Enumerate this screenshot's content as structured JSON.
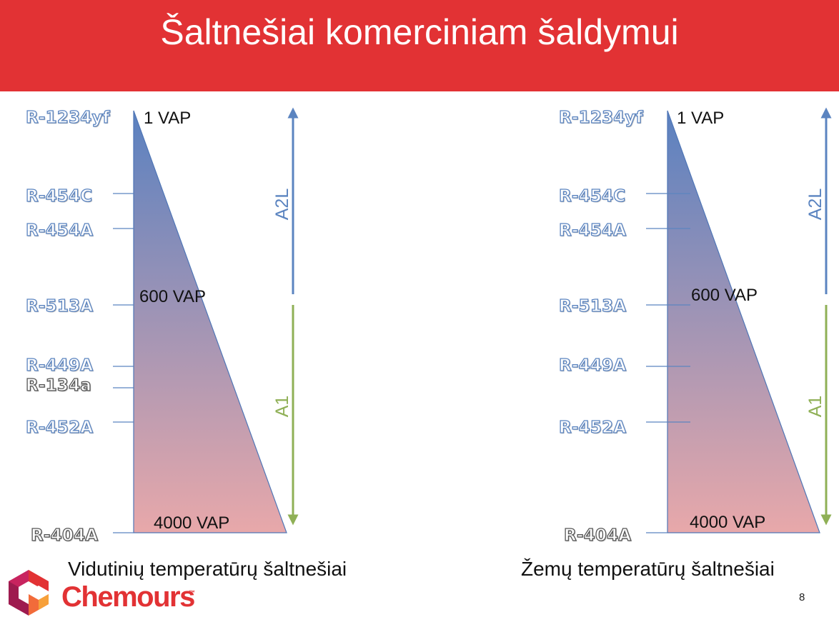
{
  "title": "Šaltnešiai komerciniam šaldymui",
  "colors": {
    "header": "#e23234",
    "refrigerant_blue": "#5b84c0",
    "refrigerant_gray": "#555555",
    "a2l_arrow": "#5b84c0",
    "a1_arrow": "#8fb056",
    "triangle_top": "#5a81c0",
    "triangle_bottom": "#e8a8aa",
    "brand": "#e23234"
  },
  "left_panel": {
    "caption": "Vidutinių temperatūrų šaltnešiai",
    "refrigerants": [
      {
        "name": "R-1234yf",
        "style": "blue"
      },
      {
        "name": "R-454C",
        "style": "blue"
      },
      {
        "name": "R-454A",
        "style": "blue"
      },
      {
        "name": "R-513A",
        "style": "blue"
      },
      {
        "name": "R-449A",
        "style": "blue"
      },
      {
        "name": "R-134a",
        "style": "gray"
      },
      {
        "name": "R-452A",
        "style": "blue"
      },
      {
        "name": "R-404A",
        "style": "gray"
      }
    ],
    "vap_top": "1 VAP",
    "vap_mid": "600 VAP",
    "vap_bottom": "4000 VAP",
    "class_upper": "A2L",
    "class_lower": "A1"
  },
  "right_panel": {
    "caption": "Žemų temperatūrų šaltnešiai",
    "refrigerants": [
      {
        "name": "R-1234yf",
        "style": "blue"
      },
      {
        "name": "R-454C",
        "style": "blue"
      },
      {
        "name": "R-454A",
        "style": "blue"
      },
      {
        "name": "R-513A",
        "style": "blue"
      },
      {
        "name": "R-449A",
        "style": "blue"
      },
      {
        "name": "R-452A",
        "style": "blue"
      },
      {
        "name": "R-404A",
        "style": "gray"
      }
    ],
    "vap_top": "1 VAP",
    "vap_mid": "600 VAP",
    "vap_bottom": "4000 VAP",
    "class_upper": "A2L",
    "class_lower": "A1"
  },
  "brand": {
    "name": "Chemours",
    "trademark": "™"
  },
  "page_number": "8"
}
